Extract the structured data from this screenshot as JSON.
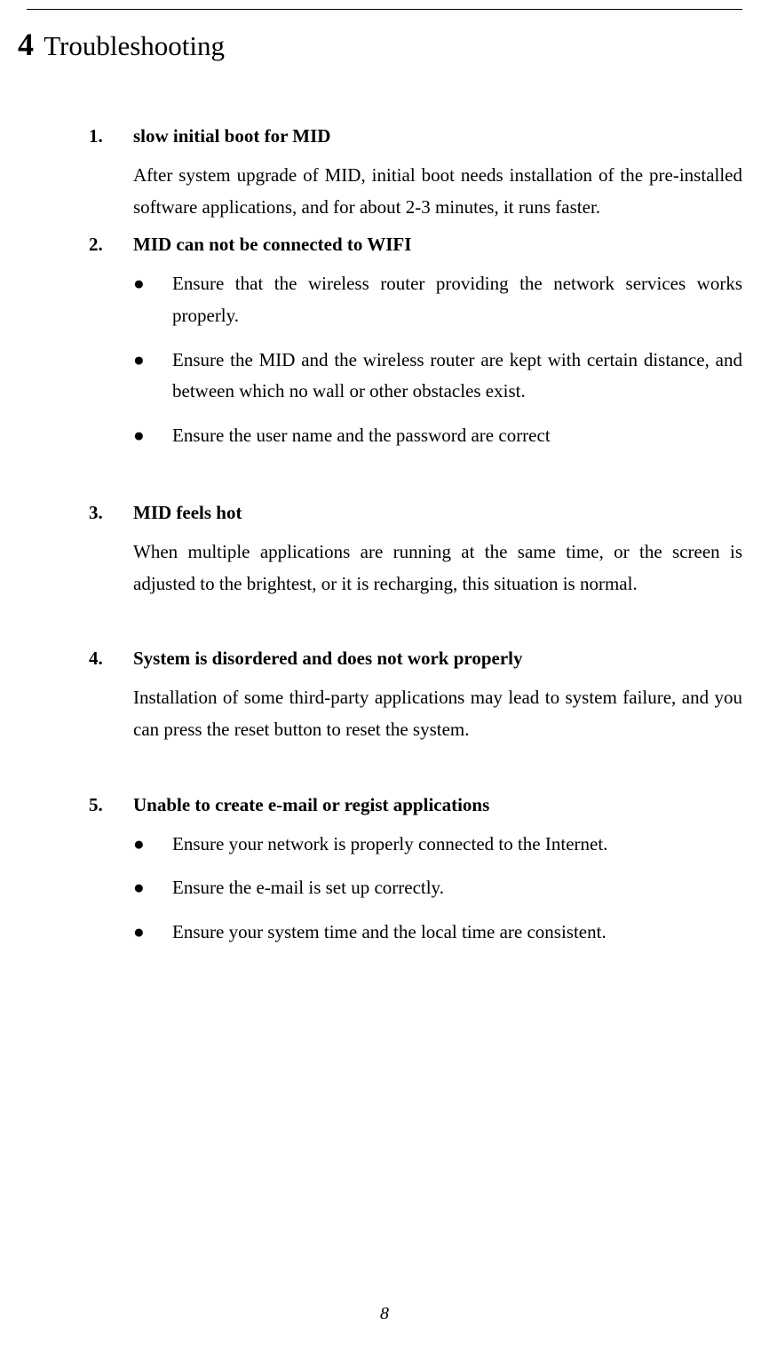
{
  "chapter": {
    "number": "4",
    "title": "Troubleshooting"
  },
  "items": [
    {
      "num": "1.",
      "title": "slow initial boot for MID",
      "body": "After system upgrade of MID, initial boot needs installation of the pre-installed software applications, and for about 2-3 minutes, it runs faster.",
      "bullets": []
    },
    {
      "num": "2.",
      "title": "MID can not be connected to WIFI",
      "body": "",
      "bullets": [
        "Ensure that the wireless router providing the network services works properly.",
        "Ensure the MID and the wireless router are kept with certain distance, and between which no wall or other obstacles exist.",
        "Ensure the user name and the password are correct"
      ]
    },
    {
      "num": "3.",
      "title": "MID feels hot",
      "body": "When multiple applications are running at the same time, or the screen is adjusted to the brightest, or it is recharging, this situation is normal.",
      "bullets": []
    },
    {
      "num": "4.",
      "title": "System is disordered and does not work properly",
      "body": "Installation of some third-party applications may lead to system failure, and you can press the reset button to reset the system.",
      "bullets": []
    },
    {
      "num": "5.",
      "title": "Unable to create e-mail or regist applications",
      "body": "",
      "bullets": [
        "Ensure your network is properly connected to the Internet.",
        "Ensure the e-mail is set up correctly.",
        "Ensure your system time and the local time are consistent."
      ]
    }
  ],
  "pageNumber": "8"
}
